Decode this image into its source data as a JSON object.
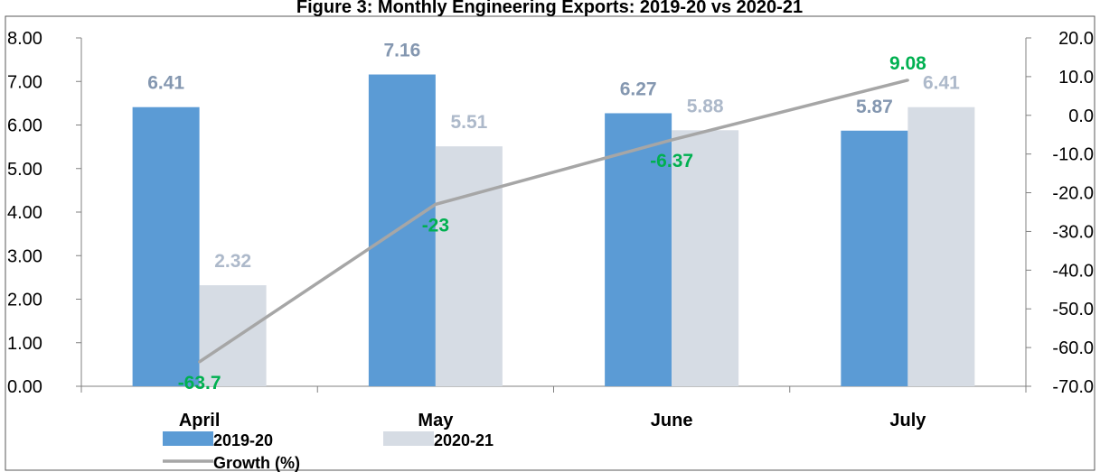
{
  "chart_data": {
    "type": "bar",
    "title": "Figure 3: Monthly Engineering Exports: 2019-20 vs 2020-21",
    "categories": [
      "April",
      "May",
      "June",
      "July"
    ],
    "series": [
      {
        "name": "2019-20",
        "type": "bar",
        "axis": "left",
        "color": "#5b9bd5",
        "values": [
          6.41,
          7.16,
          6.27,
          5.87
        ],
        "labels": [
          "6.41",
          "7.16",
          "6.27",
          "5.87"
        ],
        "label_color": "#8497b0"
      },
      {
        "name": "2020-21",
        "type": "bar",
        "axis": "left",
        "color": "#d6dce4",
        "values": [
          2.32,
          5.51,
          5.88,
          6.41
        ],
        "labels": [
          "2.32",
          "5.51",
          "5.88",
          "6.41"
        ],
        "label_color": "#adb9ca"
      },
      {
        "name": "Growth (%)",
        "type": "line",
        "axis": "right",
        "color": "#a6a6a6",
        "values": [
          -63.7,
          -23,
          -6.37,
          9.08
        ],
        "labels": [
          "-63.7",
          "-23",
          "-6.37",
          "9.08"
        ],
        "label_color": "#00b050"
      }
    ],
    "y_left": {
      "min": 0,
      "max": 8,
      "step": 1,
      "ticks": [
        "0.00",
        "1.00",
        "2.00",
        "3.00",
        "4.00",
        "5.00",
        "6.00",
        "7.00",
        "8.00"
      ]
    },
    "y_right": {
      "min": -70,
      "max": 20,
      "step": 10,
      "ticks": [
        "-70.0",
        "-60.0",
        "-50.0",
        "-40.0",
        "-30.0",
        "-20.0",
        "-10.0",
        "0.0",
        "10.0",
        "20.0"
      ]
    },
    "grid": false,
    "legend": {
      "position": "bottom-left",
      "entries": [
        "2019-20",
        "2020-21",
        "Growth (%)"
      ]
    }
  }
}
